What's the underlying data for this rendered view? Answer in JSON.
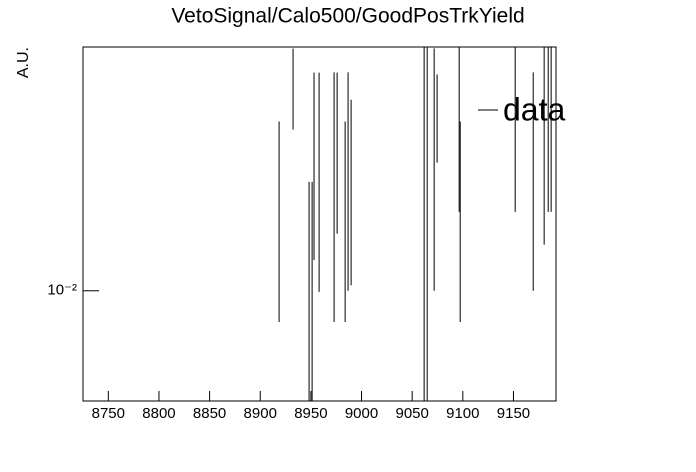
{
  "chart_data": {
    "type": "errorbar",
    "title": "VetoSignal/Calo500/GoodPosTrkYield",
    "ylabel": "A.U.",
    "x": [
      8918.6,
      8932.4,
      8948.2,
      8951.2,
      8953.1,
      8958.1,
      8972.9,
      8975.9,
      8983.8,
      8986.7,
      8989.7,
      9061.8,
      9064.8,
      9071.7,
      9074.6,
      9096.4,
      9097.4,
      9151.7,
      9169.5,
      9180.3,
      9184.3,
      9187.2
    ],
    "series": [
      {
        "name": "data",
        "color": "#000000",
        "values": [
          0.0259,
          0.0625,
          0.014,
          0.014,
          0.0405,
          0.0389,
          0.0378,
          0.0422,
          0.0259,
          0.039,
          0.032,
          0.045,
          0.045,
          0.047,
          0.0488,
          0.0525,
          0.0259,
          0.0525,
          0.039,
          0.05,
          0.0525,
          0.0525
        ],
        "errors": [
          0.0183,
          0.0213,
          0.012,
          0.012,
          0.0274,
          0.029,
          0.0302,
          0.0257,
          0.0183,
          0.029,
          0.0215,
          0.042,
          0.042,
          0.037,
          0.018,
          0.0325,
          0.0183,
          0.0325,
          0.029,
          0.035,
          0.0325,
          0.0325
        ]
      }
    ],
    "xlim": [
      8725,
      9192
    ],
    "xticks": [
      8750,
      8800,
      8850,
      8900,
      8950,
      9000,
      9050,
      9100,
      9150
    ],
    "ylim": [
      0.0038,
      0.085
    ],
    "yticks": [
      {
        "value": 0.01,
        "label": "10⁻²"
      }
    ],
    "log_y": true,
    "legend": "upper right"
  }
}
